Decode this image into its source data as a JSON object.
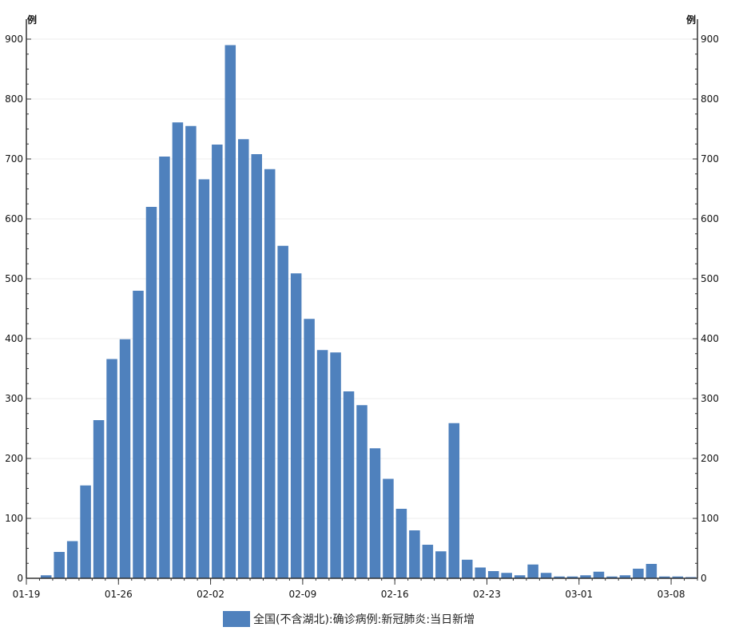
{
  "chart_data": {
    "type": "bar",
    "y_unit_left": "例",
    "y_unit_right": "例",
    "ylim": [
      0,
      900
    ],
    "yticks": [
      0,
      100,
      200,
      300,
      400,
      500,
      600,
      700,
      800,
      900
    ],
    "xlim": [
      "2020-01-19",
      "2020-03-10"
    ],
    "x_tick_labels": [
      "01-19",
      "01-26",
      "02-02",
      "02-09",
      "02-16",
      "02-23",
      "03-01",
      "03-08"
    ],
    "grid": true,
    "legend_position": "bottom-center",
    "bar_color": "#4f81bd",
    "series": [
      {
        "name": "全国(不含湖北):确诊病例:新冠肺炎:当日新增",
        "x": [
          "2020-01-20",
          "2020-01-21",
          "2020-01-22",
          "2020-01-23",
          "2020-01-24",
          "2020-01-25",
          "2020-01-26",
          "2020-01-27",
          "2020-01-28",
          "2020-01-29",
          "2020-01-30",
          "2020-01-31",
          "2020-02-01",
          "2020-02-02",
          "2020-02-03",
          "2020-02-04",
          "2020-02-05",
          "2020-02-06",
          "2020-02-07",
          "2020-02-08",
          "2020-02-09",
          "2020-02-10",
          "2020-02-11",
          "2020-02-12",
          "2020-02-13",
          "2020-02-14",
          "2020-02-15",
          "2020-02-16",
          "2020-02-17",
          "2020-02-18",
          "2020-02-19",
          "2020-02-20",
          "2020-02-21",
          "2020-02-22",
          "2020-02-23",
          "2020-02-24",
          "2020-02-25",
          "2020-02-26",
          "2020-02-27",
          "2020-02-28",
          "2020-02-29",
          "2020-03-01",
          "2020-03-02",
          "2020-03-03",
          "2020-03-04",
          "2020-03-05",
          "2020-03-06",
          "2020-03-07",
          "2020-03-08",
          "2020-03-09"
        ],
        "values": [
          5,
          44,
          62,
          155,
          264,
          366,
          399,
          480,
          620,
          704,
          761,
          755,
          666,
          724,
          890,
          733,
          708,
          683,
          555,
          509,
          433,
          381,
          377,
          312,
          289,
          217,
          166,
          116,
          80,
          56,
          45,
          259,
          31,
          18,
          12,
          9,
          5,
          23,
          9,
          3,
          3,
          5,
          11,
          3,
          5,
          16,
          24,
          3,
          3,
          2
        ]
      }
    ]
  }
}
